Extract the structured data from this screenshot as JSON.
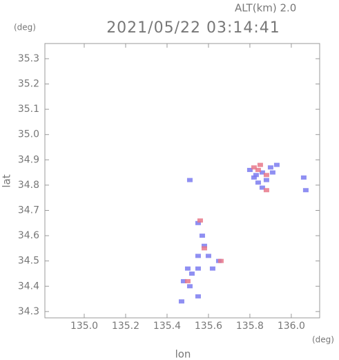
{
  "chart_data": {
    "type": "scatter",
    "title": "2021/05/22 03:14:41",
    "altitude_label": "ALT(km) 2.0",
    "xlabel": "lon",
    "ylabel": "lat",
    "xunit": "(deg)",
    "yunit": "(deg)",
    "xlim": [
      134.81,
      136.137
    ],
    "ylim": [
      34.275,
      35.36
    ],
    "xticks": [
      {
        "value": 135.0,
        "label": "135.0"
      },
      135.2,
      135.4,
      135.6,
      135.8,
      {
        "value": 136.0,
        "label": "136.0"
      }
    ],
    "yticks": [
      34.3,
      34.4,
      34.5,
      34.6,
      34.7,
      34.8,
      34.9,
      {
        "value": 35.0,
        "label": "35.0"
      },
      35.1,
      35.2,
      35.3
    ],
    "series": [
      {
        "color": "#7b7bf0",
        "x": [
          135.8,
          135.83,
          135.86,
          135.9,
          135.93,
          135.84,
          135.88,
          135.86,
          135.82,
          135.91,
          136.06,
          136.07,
          135.51,
          135.55,
          135.57,
          135.58,
          135.6,
          135.65,
          135.55,
          135.5,
          135.52,
          135.55,
          135.48,
          135.51,
          135.47,
          135.55,
          135.62
        ],
        "y": [
          34.86,
          34.84,
          34.85,
          34.87,
          34.88,
          34.81,
          34.82,
          34.79,
          34.83,
          34.85,
          34.83,
          34.78,
          34.82,
          34.65,
          34.6,
          34.56,
          34.52,
          34.5,
          34.52,
          34.47,
          34.45,
          34.47,
          34.42,
          34.4,
          34.34,
          34.36,
          34.47
        ]
      },
      {
        "color": "#e8788a",
        "x": [
          135.82,
          135.85,
          135.88,
          135.84,
          135.88,
          135.56,
          135.66,
          135.58,
          135.5
        ],
        "y": [
          34.87,
          34.88,
          34.84,
          34.86,
          34.78,
          34.66,
          34.5,
          34.55,
          34.42
        ]
      }
    ]
  }
}
